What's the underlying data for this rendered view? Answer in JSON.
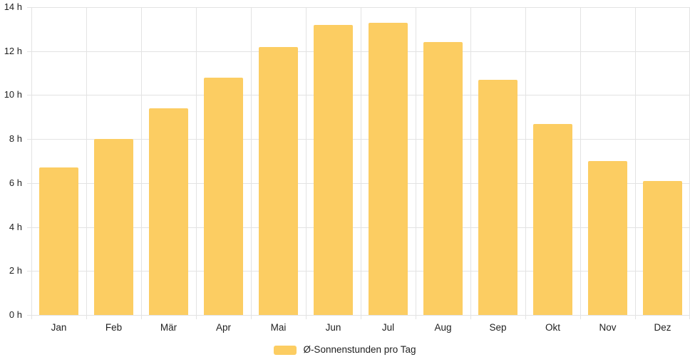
{
  "chart_data": {
    "type": "bar",
    "title": "",
    "xlabel": "",
    "ylabel": "",
    "categories": [
      "Jan",
      "Feb",
      "Mär",
      "Apr",
      "Mai",
      "Jun",
      "Jul",
      "Aug",
      "Sep",
      "Okt",
      "Nov",
      "Dez"
    ],
    "values": [
      6.7,
      8.0,
      9.4,
      10.8,
      12.2,
      13.2,
      13.3,
      12.4,
      10.7,
      8.7,
      7.0,
      6.1
    ],
    "series_name": "Ø-Sonnenstunden pro Tag",
    "unit": "h",
    "y_ticks": [
      0,
      2,
      4,
      6,
      8,
      10,
      12,
      14
    ],
    "y_tick_suffix": " h",
    "ylim": [
      0,
      14
    ],
    "grid": true,
    "legend_position": "bottom-center",
    "colors": {
      "bar": "#fccd62",
      "grid": "#e3e3e3",
      "text": "#1f1f1f",
      "background": "#ffffff"
    }
  },
  "legend": {
    "label": "Ø-Sonnenstunden pro Tag"
  }
}
